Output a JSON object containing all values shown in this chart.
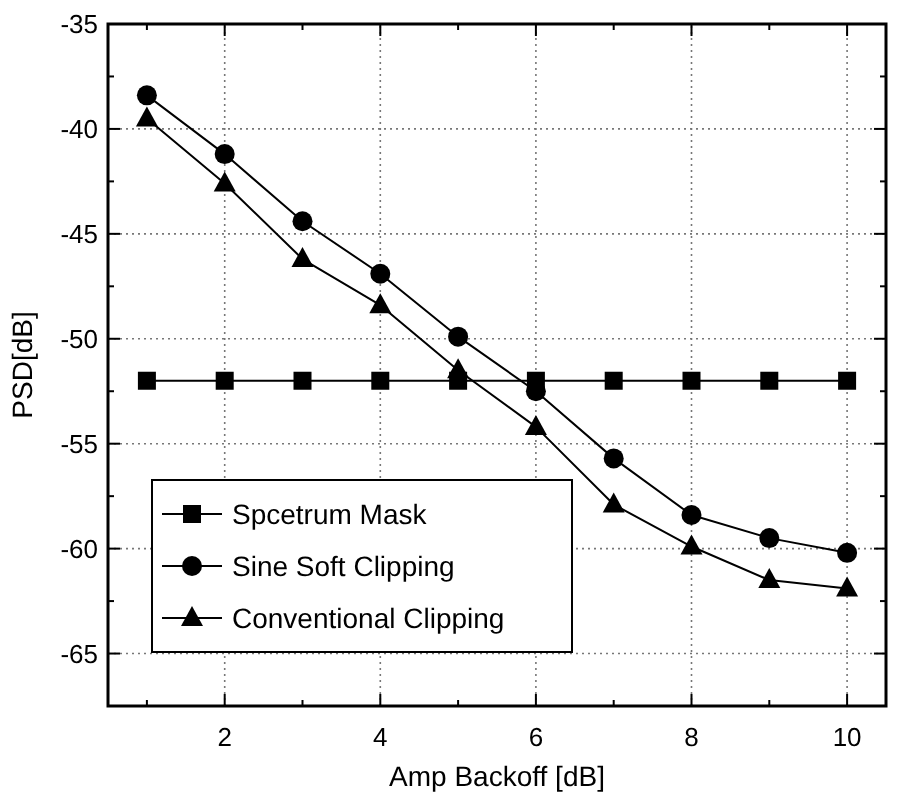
{
  "chart_data": {
    "type": "line",
    "xlabel": "Amp Backoff [dB]",
    "ylabel": "PSD[dB]",
    "x": [
      1,
      2,
      3,
      4,
      5,
      6,
      7,
      8,
      9,
      10
    ],
    "xlim": [
      0.5,
      10.5
    ],
    "xticks": [
      2,
      4,
      6,
      8,
      10
    ],
    "ylim": [
      -67.5,
      -35
    ],
    "yticks": [
      -35,
      -40,
      -45,
      -50,
      -55,
      -60,
      -65
    ],
    "grid": true,
    "legend": "bottom left",
    "line_style": "solid",
    "series": [
      {
        "name": "Spcetrum Mask",
        "color": "#000000",
        "marker": "square",
        "values": [
          -52,
          -52,
          -52,
          -52,
          -52,
          -52,
          -52,
          -52,
          -52,
          -52
        ]
      },
      {
        "name": "Sine Soft Clipping",
        "color": "#000000",
        "marker": "circle",
        "values": [
          -38.4,
          -41.2,
          -44.4,
          -46.9,
          -49.9,
          -52.5,
          -55.7,
          -58.4,
          -59.5,
          -60.2
        ]
      },
      {
        "name": "Conventional Clipping",
        "color": "#000000",
        "marker": "triangle",
        "values": [
          -39.5,
          -42.6,
          -46.2,
          -48.4,
          -51.5,
          -54.2,
          -57.9,
          -59.9,
          -61.5,
          -61.9
        ]
      }
    ]
  }
}
